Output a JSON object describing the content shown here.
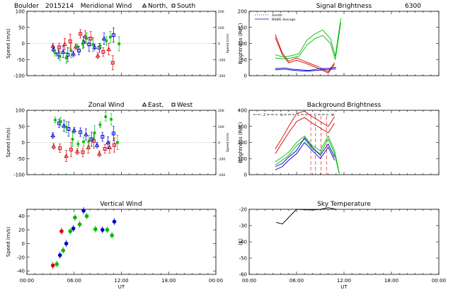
{
  "header": {
    "site": "Boulder",
    "date": "2015214"
  },
  "chart_data": [
    {
      "id": "meridional",
      "type": "scatter",
      "title": "Meridional Wind",
      "legend_text": [
        "North,",
        "South"
      ],
      "legend_markers": [
        "triangle",
        "square"
      ],
      "ylabel": "Speed (m/s)",
      "ylabel_right": "Speed (m/s)",
      "ylim": [
        -100,
        100
      ],
      "yticks": [
        "100",
        "50",
        "0",
        "-50",
        "-100"
      ],
      "yticks_right": [
        "200",
        "100",
        "0",
        "-100",
        "-200"
      ],
      "xlim": [
        0,
        24
      ],
      "series": [
        {
          "name": "red",
          "color": "#d40000",
          "points": [
            [
              3.3,
              -8
            ],
            [
              4.1,
              -12
            ],
            [
              4.8,
              -2
            ],
            [
              5.5,
              7
            ],
            [
              6.2,
              -10
            ],
            [
              6.8,
              30
            ],
            [
              7.4,
              22
            ],
            [
              8.1,
              15
            ],
            [
              9.0,
              -38
            ],
            [
              9.7,
              -26
            ],
            [
              10.4,
              -18
            ],
            [
              10.9,
              -60
            ]
          ]
        },
        {
          "name": "blue",
          "color": "#0000cc",
          "points": [
            [
              3.4,
              -18
            ],
            [
              4.0,
              -34
            ],
            [
              4.6,
              -26
            ],
            [
              5.2,
              -35
            ],
            [
              5.9,
              -32
            ],
            [
              6.6,
              -22
            ],
            [
              7.2,
              5
            ],
            [
              7.9,
              -3
            ],
            [
              8.6,
              -11
            ],
            [
              9.2,
              -13
            ],
            [
              9.8,
              15
            ],
            [
              11.0,
              26
            ]
          ]
        },
        {
          "name": "green",
          "color": "#00bb00",
          "points": [
            [
              3.6,
              -30
            ],
            [
              4.2,
              -40
            ],
            [
              5.0,
              -45
            ],
            [
              5.6,
              -22
            ],
            [
              6.4,
              -10
            ],
            [
              7.1,
              -2
            ],
            [
              7.6,
              16
            ],
            [
              8.4,
              -3
            ],
            [
              9.3,
              -8
            ],
            [
              10.1,
              8
            ],
            [
              10.6,
              20
            ],
            [
              11.7,
              -1
            ]
          ]
        }
      ]
    },
    {
      "id": "signal",
      "type": "line",
      "title": "Signal Brightness",
      "title_right": "6300",
      "legend": [
        "Zenith",
        "NSWE Average"
      ],
      "ylabel": "Brightness (Rel.)",
      "ylim": [
        0,
        200
      ],
      "yticks": [
        "200",
        "150",
        "100",
        "50",
        "0"
      ],
      "xlim": [
        0,
        24
      ],
      "series": [
        {
          "name": "red-1",
          "color": "#d40000",
          "points": [
            [
              3.3,
              128
            ],
            [
              4.2,
              70
            ],
            [
              5.0,
              45
            ],
            [
              6.0,
              55
            ],
            [
              7.0,
              45
            ],
            [
              8.0,
              35
            ],
            [
              9.0,
              25
            ],
            [
              10.0,
              12
            ],
            [
              10.8,
              40
            ]
          ]
        },
        {
          "name": "red-2",
          "color": "#d40000",
          "points": [
            [
              3.3,
              118
            ],
            [
              4.2,
              65
            ],
            [
              5.0,
              40
            ],
            [
              6.0,
              48
            ],
            [
              7.0,
              40
            ],
            [
              8.0,
              30
            ],
            [
              9.0,
              20
            ],
            [
              10.0,
              8
            ],
            [
              10.8,
              35
            ]
          ]
        },
        {
          "name": "green-1",
          "color": "#00bb00",
          "points": [
            [
              3.3,
              65
            ],
            [
              4.3,
              58
            ],
            [
              5.3,
              62
            ],
            [
              6.3,
              68
            ],
            [
              7.3,
              110
            ],
            [
              8.3,
              130
            ],
            [
              9.3,
              142
            ],
            [
              10.3,
              115
            ],
            [
              10.9,
              60
            ],
            [
              11.6,
              178
            ]
          ]
        },
        {
          "name": "green-2",
          "color": "#00bb00",
          "points": [
            [
              3.3,
              55
            ],
            [
              4.3,
              52
            ],
            [
              5.3,
              55
            ],
            [
              6.3,
              60
            ],
            [
              7.3,
              95
            ],
            [
              8.3,
              115
            ],
            [
              9.3,
              125
            ],
            [
              10.3,
              100
            ],
            [
              10.9,
              50
            ],
            [
              11.6,
              165
            ]
          ]
        },
        {
          "name": "blue-1",
          "color": "#0000cc",
          "points": [
            [
              3.3,
              22
            ],
            [
              4.5,
              24
            ],
            [
              5.5,
              20
            ],
            [
              6.5,
              18
            ],
            [
              7.5,
              16
            ],
            [
              8.5,
              20
            ],
            [
              9.5,
              22
            ],
            [
              10.5,
              24
            ],
            [
              11.0,
              26
            ]
          ]
        },
        {
          "name": "blue-2",
          "color": "#0000cc",
          "points": [
            [
              3.3,
              18
            ],
            [
              4.5,
              20
            ],
            [
              5.5,
              17
            ],
            [
              6.5,
              15
            ],
            [
              7.5,
              14
            ],
            [
              8.5,
              16
            ],
            [
              9.5,
              18
            ],
            [
              10.5,
              20
            ],
            [
              11.0,
              22
            ]
          ]
        }
      ]
    },
    {
      "id": "zonal",
      "type": "scatter",
      "title": "Zonal Wind",
      "legend_text": [
        "East,",
        "West"
      ],
      "legend_markers": [
        "triangle",
        "square"
      ],
      "ylabel": "Speed (m/s)",
      "ylabel_right": "Speed (m/s)",
      "ylim": [
        -100,
        100
      ],
      "yticks": [
        "100",
        "50",
        "0",
        "-50",
        "-100"
      ],
      "yticks_right": [
        "200",
        "100",
        "0",
        "-100",
        "-200"
      ],
      "xlim": [
        0,
        24
      ],
      "series": [
        {
          "name": "red",
          "color": "#d40000",
          "points": [
            [
              3.4,
              -12
            ],
            [
              4.2,
              -18
            ],
            [
              5.0,
              -42
            ],
            [
              5.6,
              -22
            ],
            [
              6.4,
              -28
            ],
            [
              7.1,
              -30
            ],
            [
              7.8,
              -15
            ],
            [
              8.5,
              5
            ],
            [
              9.2,
              -35
            ],
            [
              9.9,
              -20
            ],
            [
              10.5,
              -15
            ],
            [
              11.1,
              -8
            ]
          ]
        },
        {
          "name": "blue",
          "color": "#0000cc",
          "points": [
            [
              3.3,
              22
            ],
            [
              4.1,
              60
            ],
            [
              4.7,
              52
            ],
            [
              5.3,
              42
            ],
            [
              6.0,
              38
            ],
            [
              6.8,
              32
            ],
            [
              7.5,
              25
            ],
            [
              8.2,
              10
            ],
            [
              8.9,
              -8
            ],
            [
              9.6,
              18
            ],
            [
              10.3,
              0
            ],
            [
              11.0,
              28
            ]
          ]
        },
        {
          "name": "green",
          "color": "#00bb00",
          "points": [
            [
              3.6,
              70
            ],
            [
              4.3,
              65
            ],
            [
              5.0,
              48
            ],
            [
              5.8,
              10
            ],
            [
              6.5,
              -5
            ],
            [
              7.2,
              2
            ],
            [
              7.9,
              5
            ],
            [
              8.6,
              30
            ],
            [
              9.3,
              55
            ],
            [
              10.0,
              80
            ],
            [
              10.7,
              72
            ],
            [
              11.5,
              0
            ]
          ]
        }
      ]
    },
    {
      "id": "background",
      "type": "line",
      "title": "Background Brightness",
      "legend": [
        "Z",
        "N",
        "S",
        "E",
        "W"
      ],
      "ylabel": "Brightness (Rel.)",
      "ylim": [
        0,
        400
      ],
      "yticks": [
        "400",
        "300",
        "200",
        "100",
        "0"
      ],
      "xlim": [
        0,
        24
      ],
      "series": [
        {
          "name": "red-1",
          "color": "#d40000",
          "points": [
            [
              3.3,
              160
            ],
            [
              4.2,
              230
            ],
            [
              5.0,
              300
            ],
            [
              6.0,
              380
            ],
            [
              7.0,
              395
            ],
            [
              8.0,
              360
            ],
            [
              9.0,
              330
            ],
            [
              10.0,
              300
            ],
            [
              10.8,
              360
            ]
          ]
        },
        {
          "name": "red-2",
          "color": "#d40000",
          "points": [
            [
              3.3,
              130
            ],
            [
              4.2,
              200
            ],
            [
              5.0,
              260
            ],
            [
              6.0,
              330
            ],
            [
              7.0,
              355
            ],
            [
              8.0,
              320
            ],
            [
              9.0,
              290
            ],
            [
              10.0,
              260
            ],
            [
              10.8,
              320
            ]
          ]
        },
        {
          "name": "green-1",
          "color": "#00bb00",
          "points": [
            [
              3.3,
              80
            ],
            [
              4.2,
              110
            ],
            [
              5.0,
              140
            ],
            [
              6.0,
              200
            ],
            [
              7.0,
              240
            ],
            [
              8.0,
              180
            ],
            [
              9.0,
              150
            ],
            [
              10.0,
              240
            ],
            [
              10.8,
              150
            ],
            [
              11.4,
              10
            ]
          ]
        },
        {
          "name": "green-2",
          "color": "#00bb00",
          "points": [
            [
              3.3,
              60
            ],
            [
              4.2,
              90
            ],
            [
              5.0,
              120
            ],
            [
              6.0,
              180
            ],
            [
              7.0,
              220
            ],
            [
              8.0,
              160
            ],
            [
              9.0,
              130
            ],
            [
              10.0,
              220
            ],
            [
              10.8,
              130
            ],
            [
              11.4,
              5
            ]
          ]
        },
        {
          "name": "blue-1",
          "color": "#0000cc",
          "points": [
            [
              3.3,
              50
            ],
            [
              4.2,
              70
            ],
            [
              5.0,
              110
            ],
            [
              6.0,
              150
            ],
            [
              7.0,
              230
            ],
            [
              8.0,
              170
            ],
            [
              9.0,
              120
            ],
            [
              10.0,
              190
            ],
            [
              10.8,
              110
            ]
          ]
        },
        {
          "name": "blue-2",
          "color": "#0000cc",
          "points": [
            [
              3.3,
              30
            ],
            [
              4.2,
              50
            ],
            [
              5.0,
              90
            ],
            [
              6.0,
              130
            ],
            [
              7.0,
              200
            ],
            [
              8.0,
              150
            ],
            [
              9.0,
              100
            ],
            [
              10.0,
              170
            ],
            [
              10.8,
              90
            ]
          ]
        }
      ]
    },
    {
      "id": "vertical",
      "type": "scatter",
      "title": "Vertical Wind",
      "ylabel": "Speed (m/s)",
      "ylim": [
        -45,
        50
      ],
      "yticks": [
        "40",
        "20",
        "0",
        "-20",
        "-40"
      ],
      "xlabel": "UT",
      "xticks": [
        "00:00",
        "06:00",
        "12:00",
        "18:00",
        "00:00"
      ],
      "xlim": [
        0,
        24
      ],
      "series": [
        {
          "name": "red",
          "color": "#d40000",
          "points": [
            [
              3.3,
              -32
            ],
            [
              4.4,
              18
            ]
          ]
        },
        {
          "name": "blue",
          "color": "#0000cc",
          "points": [
            [
              4.2,
              -17
            ],
            [
              5.0,
              0
            ],
            [
              5.9,
              22
            ],
            [
              7.2,
              48
            ],
            [
              9.6,
              20
            ],
            [
              11.1,
              32
            ]
          ]
        },
        {
          "name": "green",
          "color": "#00bb00",
          "points": [
            [
              3.8,
              -30
            ],
            [
              4.6,
              -10
            ],
            [
              5.5,
              18
            ],
            [
              6.1,
              38
            ],
            [
              6.7,
              28
            ],
            [
              7.6,
              40
            ],
            [
              8.7,
              21
            ],
            [
              10.2,
              20
            ],
            [
              10.8,
              12
            ]
          ]
        }
      ]
    },
    {
      "id": "sky",
      "type": "line",
      "title": "Sky Temperature",
      "ylabel": "(K)",
      "ylim": [
        -60,
        -20
      ],
      "yticks": [
        "-20",
        "-30",
        "-40",
        "-50",
        "-60"
      ],
      "xlabel": "UT",
      "xticks": [
        "00:00",
        "06:00",
        "12:00",
        "18:00",
        "00:00"
      ],
      "xlim": [
        0,
        24
      ],
      "series": [
        {
          "name": "temperature",
          "color": "#000000",
          "points": [
            [
              3.4,
              -28
            ],
            [
              4.2,
              -29
            ],
            [
              5.0,
              -25
            ],
            [
              6.0,
              -20
            ],
            [
              8.0,
              -20.5
            ],
            [
              9.0,
              -20
            ],
            [
              10.0,
              -19
            ],
            [
              11.0,
              -20
            ]
          ]
        }
      ]
    }
  ]
}
